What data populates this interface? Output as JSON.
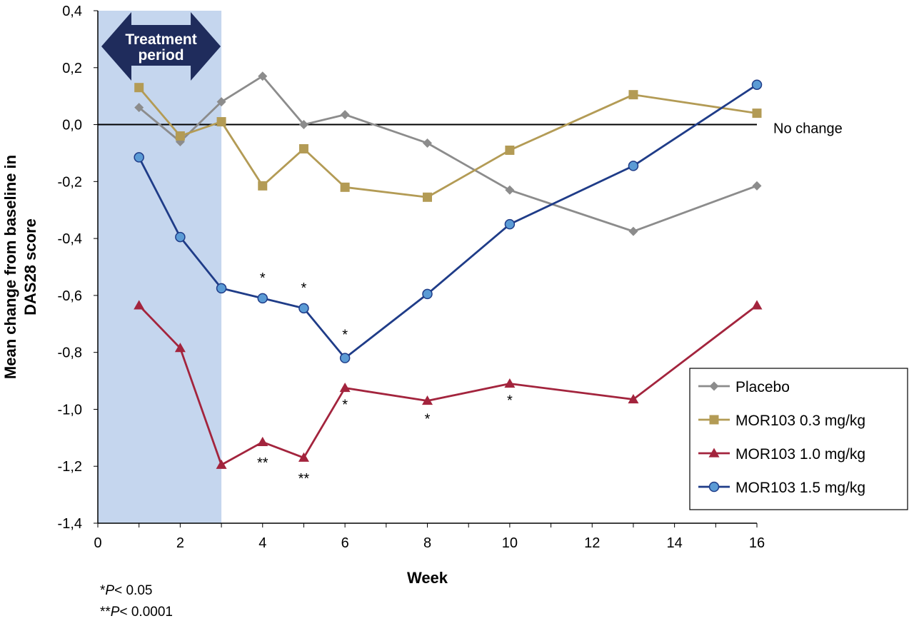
{
  "chart_data": {
    "type": "line",
    "title": "",
    "xlabel": "Week",
    "ylabel_lines": [
      "Mean change from baseline in",
      "DAS28 score"
    ],
    "xlim": [
      0,
      16
    ],
    "ylim": [
      -1.4,
      0.4
    ],
    "x_ticks": [
      0,
      2,
      4,
      6,
      8,
      10,
      12,
      14,
      16
    ],
    "y_ticks": [
      {
        "value": 0.4,
        "label": "0,4"
      },
      {
        "value": 0.2,
        "label": "0,2"
      },
      {
        "value": 0.0,
        "label": "0,0"
      },
      {
        "value": -0.2,
        "label": "-0,2"
      },
      {
        "value": -0.4,
        "label": "-0,4"
      },
      {
        "value": -0.6,
        "label": "-0,6"
      },
      {
        "value": -0.8,
        "label": "-0,8"
      },
      {
        "value": -1.0,
        "label": "-1,0"
      },
      {
        "value": -1.2,
        "label": "-1,2"
      },
      {
        "value": -1.4,
        "label": "-1,4"
      }
    ],
    "grid": false,
    "legend_position": "bottom-right",
    "treatment_period": {
      "label_lines": [
        "Treatment",
        "period"
      ],
      "start": 0,
      "end": 3,
      "color": "#c5d6ee",
      "arrow_color": "#1f2c5c"
    },
    "reference_line": {
      "value": 0,
      "label": "No change"
    },
    "x": [
      1,
      2,
      3,
      4,
      5,
      6,
      8,
      10,
      13,
      16
    ],
    "series": [
      {
        "name": "Placebo",
        "color": "#8c8c8c",
        "marker": "diamond",
        "values": [
          0.06,
          -0.06,
          0.08,
          0.17,
          0.0,
          0.035,
          -0.065,
          -0.23,
          -0.375,
          -0.215
        ]
      },
      {
        "name": "MOR103 0.3 mg/kg",
        "color": "#b39b55",
        "marker": "square",
        "values": [
          0.13,
          -0.04,
          0.01,
          -0.215,
          -0.085,
          -0.22,
          -0.255,
          -0.09,
          0.105,
          0.04
        ]
      },
      {
        "name": "MOR103 1.0 mg/kg",
        "color": "#a3243d",
        "marker": "triangle",
        "values": [
          -0.635,
          -0.785,
          -1.195,
          -1.115,
          -1.17,
          -0.925,
          -0.97,
          -0.91,
          -0.965,
          -0.635
        ]
      },
      {
        "name": "MOR103 1.5 mg/kg",
        "color": "#1f3c88",
        "marker": "circle",
        "fill": "#5b9bd5",
        "values": [
          -0.115,
          -0.395,
          -0.575,
          -0.61,
          -0.645,
          -0.82,
          -0.595,
          -0.35,
          -0.145,
          0.14
        ]
      }
    ],
    "annotations": [
      {
        "text": "*",
        "x": 4,
        "y": -0.555
      },
      {
        "text": "*",
        "x": 5,
        "y": -0.59
      },
      {
        "text": "*",
        "x": 6,
        "y": -0.755
      },
      {
        "text": "*",
        "x": 6,
        "y": -1.0
      },
      {
        "text": "*",
        "x": 8,
        "y": -1.05
      },
      {
        "text": "*",
        "x": 10,
        "y": -0.985
      },
      {
        "text": "**",
        "x": 4,
        "y": -1.205
      },
      {
        "text": "**",
        "x": 5,
        "y": -1.26
      }
    ],
    "footnotes": [
      {
        "prefix": "*",
        "italic": "P",
        "suffix": "< 0.05"
      },
      {
        "prefix": "**",
        "italic": "P",
        "suffix": "< 0.0001"
      }
    ]
  }
}
